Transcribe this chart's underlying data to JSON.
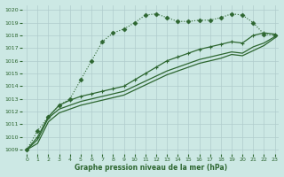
{
  "xlabel": "Graphe pression niveau de la mer (hPa)",
  "bg": "#cce8e4",
  "grid_color": "#b0cccc",
  "lc": "#2d6630",
  "ylim": [
    1008.7,
    1020.4
  ],
  "xlim": [
    -0.4,
    23.4
  ],
  "yticks": [
    1009,
    1010,
    1011,
    1012,
    1013,
    1014,
    1015,
    1016,
    1017,
    1018,
    1019,
    1020
  ],
  "xticks": [
    0,
    1,
    2,
    3,
    4,
    5,
    6,
    7,
    8,
    9,
    10,
    11,
    12,
    13,
    14,
    15,
    16,
    17,
    18,
    19,
    20,
    21,
    22,
    23
  ],
  "s1": [
    1009.0,
    1010.5,
    1011.6,
    1012.5,
    1013.0,
    1014.5,
    1016.0,
    1017.5,
    1018.2,
    1018.5,
    1019.0,
    1019.6,
    1019.7,
    1019.4,
    1019.1,
    1019.1,
    1019.2,
    1019.2,
    1019.4,
    1019.7,
    1019.6,
    1019.0,
    1018.1,
    1018.0
  ],
  "s2": [
    1009.0,
    1010.0,
    1011.6,
    1012.5,
    1012.9,
    1013.2,
    1013.4,
    1013.6,
    1013.8,
    1014.0,
    1014.5,
    1015.0,
    1015.5,
    1016.0,
    1016.3,
    1016.6,
    1016.9,
    1017.1,
    1017.3,
    1017.5,
    1017.4,
    1018.0,
    1018.2,
    1018.1
  ],
  "s3": [
    1009.0,
    1009.8,
    1011.5,
    1012.2,
    1012.5,
    1012.8,
    1013.0,
    1013.2,
    1013.4,
    1013.6,
    1014.0,
    1014.4,
    1014.8,
    1015.2,
    1015.5,
    1015.8,
    1016.1,
    1016.3,
    1016.5,
    1016.7,
    1016.6,
    1017.1,
    1017.4,
    1017.9
  ],
  "s4": [
    1009.0,
    1009.5,
    1011.2,
    1011.9,
    1012.2,
    1012.5,
    1012.7,
    1012.9,
    1013.1,
    1013.3,
    1013.7,
    1014.1,
    1014.5,
    1014.9,
    1015.2,
    1015.5,
    1015.8,
    1016.0,
    1016.2,
    1016.5,
    1016.4,
    1016.8,
    1017.2,
    1017.8
  ]
}
